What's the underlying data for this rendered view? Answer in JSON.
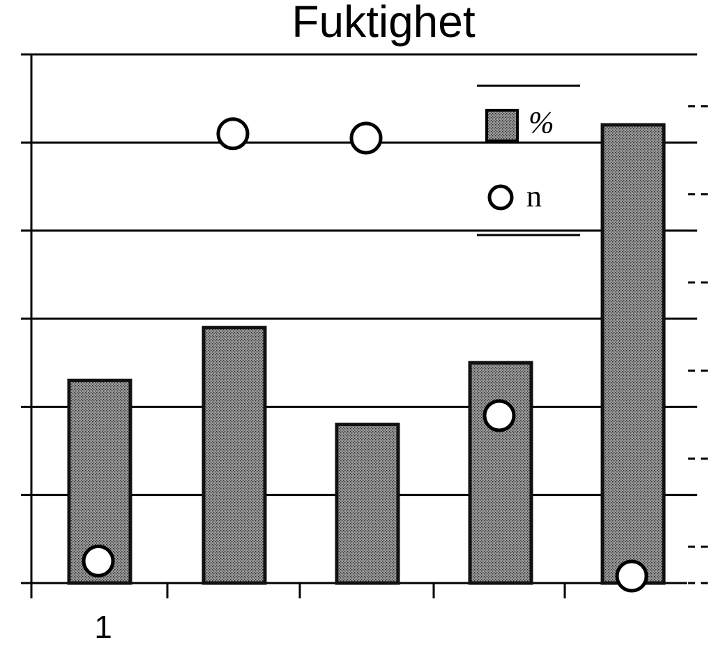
{
  "chart_data": {
    "type": "bar",
    "title": "Fuktighet",
    "xlabel": "",
    "ylabel": "",
    "categories": [
      "1",
      "",
      "",
      "",
      ""
    ],
    "ylim": [
      0,
      6
    ],
    "grid": true,
    "legend_placement": "top-right",
    "series": [
      {
        "name": "%",
        "kind": "bar",
        "values": [
          2.3,
          2.9,
          1.8,
          2.5,
          5.2
        ]
      },
      {
        "name": "n",
        "kind": "scatter",
        "values": [
          0.25,
          5.1,
          5.05,
          1.9,
          0.07
        ]
      }
    ]
  },
  "colors": {
    "bar_fill": "#8c8c8c",
    "bar_stroke": "#111111",
    "marker_fill": "#ffffff",
    "grid": "#000000"
  }
}
